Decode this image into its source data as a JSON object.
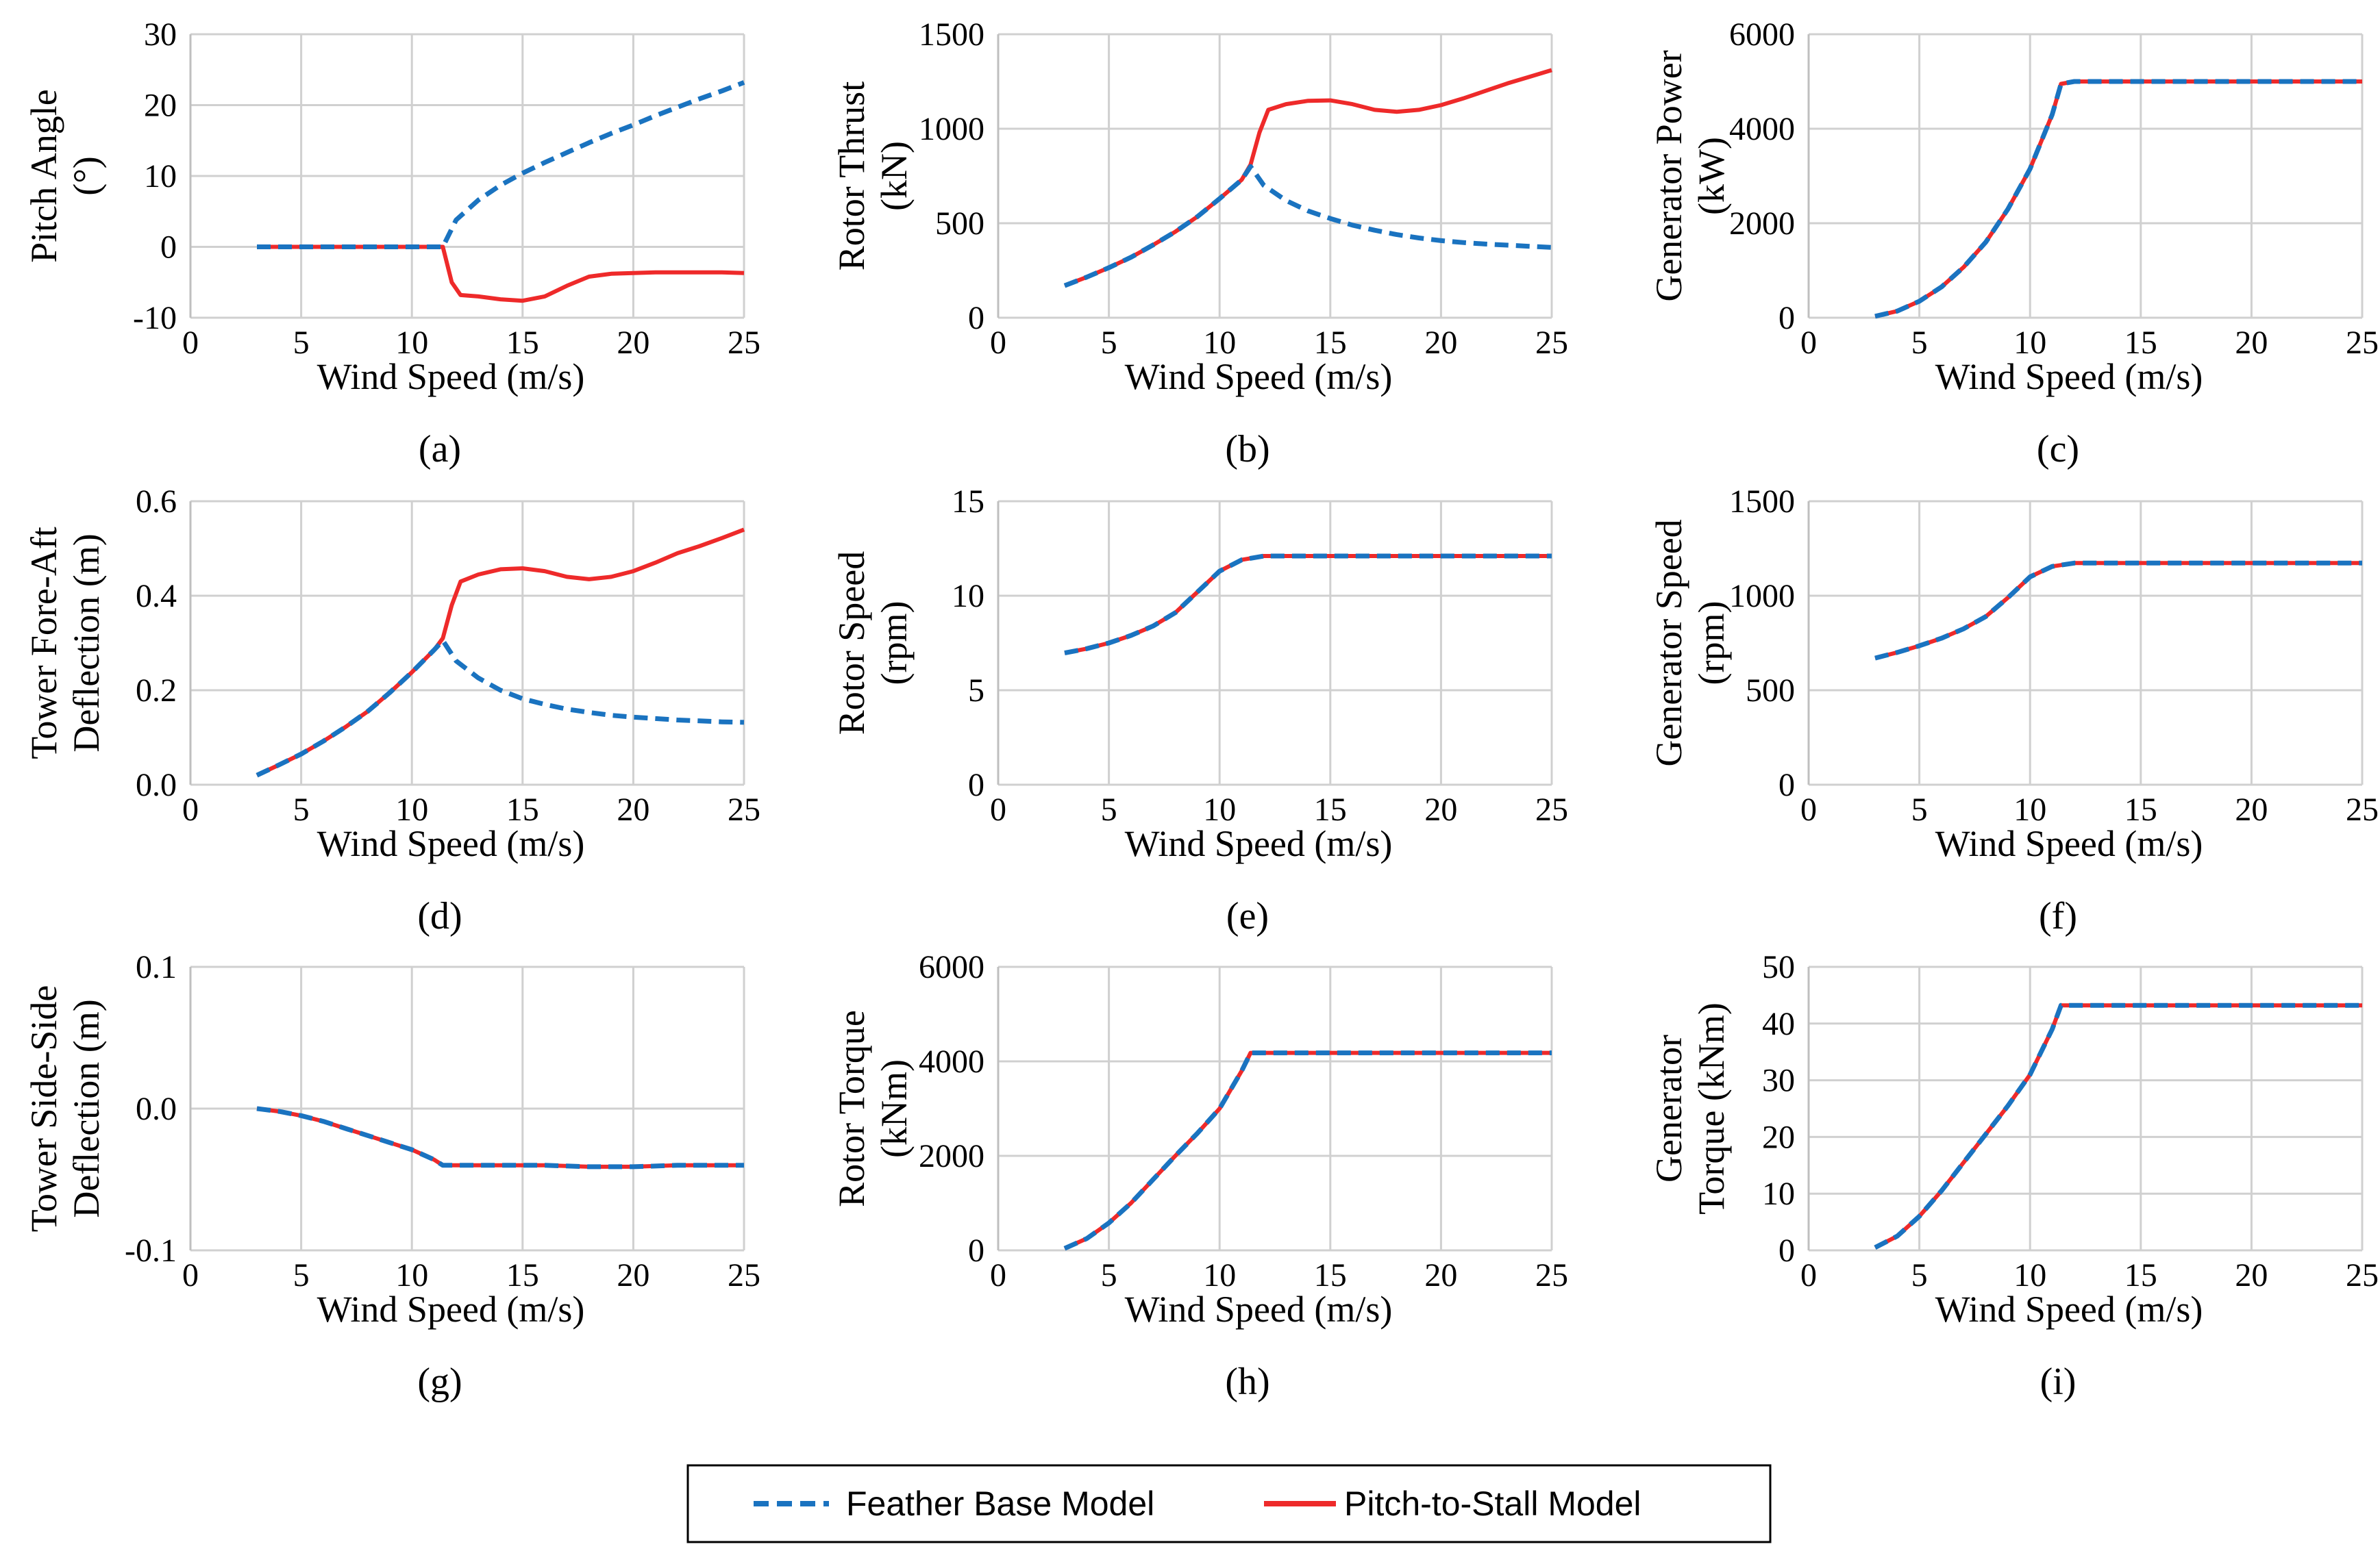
{
  "colors": {
    "feather": "#1a73c0",
    "stall": "#ee2a2a",
    "grid": "#d0d0d0"
  },
  "legend": {
    "entries": [
      "Feather Base Model",
      "Pitch-to-Stall Model"
    ]
  },
  "chart_data": [
    {
      "type": "line",
      "caption": "(a)",
      "xlabel": "Wind Speed (m/s)",
      "ylabel": [
        "Pitch Angle",
        "(°)"
      ],
      "xlim": [
        0,
        25
      ],
      "ylim": [
        -10,
        30
      ],
      "xticks": [
        0,
        5,
        10,
        15,
        20,
        25
      ],
      "yticks": [
        -10,
        0,
        10,
        20,
        30
      ],
      "yticklabels": [
        "-10",
        "0",
        "10",
        "20",
        "30"
      ],
      "grid": true,
      "series": [
        {
          "name": "Feather Base Model",
          "x": [
            3,
            5,
            7,
            9,
            11,
            11.4,
            12,
            13,
            14,
            15,
            16,
            17,
            18,
            19,
            20,
            21,
            22,
            23,
            24,
            25
          ],
          "y": [
            0,
            0,
            0,
            0,
            0,
            0,
            3.8,
            6.6,
            8.7,
            10.4,
            11.9,
            13.3,
            14.7,
            16,
            17.2,
            18.5,
            19.7,
            20.9,
            22,
            23.2
          ]
        },
        {
          "name": "Pitch-to-Stall Model",
          "x": [
            3,
            5,
            7,
            9,
            11,
            11.4,
            11.8,
            12.2,
            13,
            14,
            15,
            16,
            17,
            18,
            19,
            20,
            21,
            22,
            23,
            24,
            25
          ],
          "y": [
            0,
            0,
            0,
            0,
            0,
            0,
            -5,
            -6.8,
            -7,
            -7.4,
            -7.6,
            -7,
            -5.5,
            -4.2,
            -3.8,
            -3.7,
            -3.6,
            -3.6,
            -3.6,
            -3.6,
            -3.7
          ]
        }
      ]
    },
    {
      "type": "line",
      "caption": "(b)",
      "xlabel": "Wind Speed (m/s)",
      "ylabel": [
        "Rotor Thrust",
        "(kN)"
      ],
      "xlim": [
        0,
        25
      ],
      "ylim": [
        0,
        1500
      ],
      "xticks": [
        0,
        5,
        10,
        15,
        20,
        25
      ],
      "yticks": [
        0,
        500,
        1000,
        1500
      ],
      "yticklabels": [
        "0",
        "500",
        "1000",
        "1500"
      ],
      "grid": true,
      "series": [
        {
          "name": "Feather Base Model",
          "x": [
            3,
            4,
            5,
            6,
            7,
            8,
            9,
            10,
            11,
            11.4,
            12,
            13,
            14,
            15,
            16,
            17,
            18,
            19,
            20,
            21,
            22,
            23,
            24,
            25
          ],
          "y": [
            170,
            215,
            265,
            320,
            385,
            455,
            535,
            630,
            730,
            800,
            700,
            620,
            565,
            525,
            490,
            463,
            440,
            422,
            408,
            398,
            390,
            384,
            378,
            372
          ]
        },
        {
          "name": "Pitch-to-Stall Model",
          "x": [
            3,
            4,
            5,
            6,
            7,
            8,
            9,
            10,
            11,
            11.4,
            11.8,
            12.2,
            13,
            14,
            15,
            16,
            17,
            18,
            19,
            20,
            21,
            22,
            23,
            24,
            25
          ],
          "y": [
            170,
            215,
            265,
            320,
            385,
            455,
            535,
            630,
            730,
            810,
            980,
            1100,
            1130,
            1148,
            1150,
            1130,
            1100,
            1090,
            1100,
            1125,
            1160,
            1200,
            1240,
            1275,
            1310
          ]
        }
      ]
    },
    {
      "type": "line",
      "caption": "(c)",
      "xlabel": "Wind Speed (m/s)",
      "ylabel": [
        "Generator Power",
        "(kW)"
      ],
      "xlim": [
        0,
        25
      ],
      "ylim": [
        0,
        6000
      ],
      "xticks": [
        0,
        5,
        10,
        15,
        20,
        25
      ],
      "yticks": [
        0,
        2000,
        4000,
        6000
      ],
      "yticklabels": [
        "0",
        "2000",
        "4000",
        "6000"
      ],
      "grid": true,
      "series": [
        {
          "name": "Feather Base Model",
          "x": [
            3,
            4,
            5,
            6,
            7,
            8,
            9,
            10,
            11,
            11.4,
            12,
            15,
            20,
            25
          ],
          "y": [
            30,
            140,
            350,
            650,
            1070,
            1600,
            2300,
            3150,
            4300,
            4950,
            5000,
            5000,
            5000,
            5000
          ]
        },
        {
          "name": "Pitch-to-Stall Model",
          "x": [
            3,
            4,
            5,
            6,
            7,
            8,
            9,
            10,
            11,
            11.4,
            12,
            15,
            20,
            25
          ],
          "y": [
            30,
            140,
            350,
            650,
            1070,
            1600,
            2300,
            3150,
            4300,
            4950,
            5000,
            5000,
            5000,
            5000
          ]
        }
      ]
    },
    {
      "type": "line",
      "caption": "(d)",
      "xlabel": "Wind Speed (m/s)",
      "ylabel": [
        "Tower Fore-Aft",
        "Deflection (m)"
      ],
      "xlim": [
        0,
        25
      ],
      "ylim": [
        0,
        0.6
      ],
      "xticks": [
        0,
        5,
        10,
        15,
        20,
        25
      ],
      "yticks": [
        0,
        0.2,
        0.4,
        0.6
      ],
      "yticklabels": [
        "0.0",
        "0.2",
        "0.4",
        "0.6"
      ],
      "grid": true,
      "series": [
        {
          "name": "Feather Base Model",
          "x": [
            3,
            4,
            5,
            6,
            7,
            8,
            9,
            10,
            11,
            11.4,
            12,
            13,
            14,
            15,
            16,
            17,
            18,
            19,
            20,
            21,
            22,
            23,
            24,
            25
          ],
          "y": [
            0.02,
            0.042,
            0.065,
            0.092,
            0.122,
            0.155,
            0.195,
            0.238,
            0.285,
            0.305,
            0.262,
            0.226,
            0.2,
            0.182,
            0.17,
            0.16,
            0.153,
            0.147,
            0.143,
            0.14,
            0.137,
            0.135,
            0.133,
            0.132
          ]
        },
        {
          "name": "Pitch-to-Stall Model",
          "x": [
            3,
            4,
            5,
            6,
            7,
            8,
            9,
            10,
            11,
            11.4,
            11.8,
            12.2,
            13,
            14,
            15,
            16,
            17,
            18,
            19,
            20,
            21,
            22,
            23,
            24,
            25
          ],
          "y": [
            0.02,
            0.042,
            0.065,
            0.092,
            0.122,
            0.155,
            0.195,
            0.238,
            0.285,
            0.31,
            0.38,
            0.43,
            0.445,
            0.456,
            0.458,
            0.452,
            0.44,
            0.435,
            0.44,
            0.452,
            0.47,
            0.49,
            0.505,
            0.522,
            0.54
          ]
        }
      ]
    },
    {
      "type": "line",
      "caption": "(e)",
      "xlabel": "Wind Speed (m/s)",
      "ylabel": [
        "Rotor Speed",
        "(rpm)"
      ],
      "xlim": [
        0,
        25
      ],
      "ylim": [
        0,
        15
      ],
      "xticks": [
        0,
        5,
        10,
        15,
        20,
        25
      ],
      "yticks": [
        0,
        5,
        10,
        15
      ],
      "yticklabels": [
        "0",
        "5",
        "10",
        "15"
      ],
      "grid": true,
      "series": [
        {
          "name": "Feather Base Model",
          "x": [
            3,
            4,
            5,
            6,
            7,
            8,
            9,
            10,
            11,
            12,
            15,
            20,
            25
          ],
          "y": [
            6.97,
            7.2,
            7.5,
            7.9,
            8.4,
            9.1,
            10.2,
            11.3,
            11.9,
            12.1,
            12.1,
            12.1,
            12.1
          ]
        },
        {
          "name": "Pitch-to-Stall Model",
          "x": [
            3,
            4,
            5,
            6,
            7,
            8,
            9,
            10,
            11,
            12,
            15,
            20,
            25
          ],
          "y": [
            6.97,
            7.2,
            7.5,
            7.9,
            8.4,
            9.1,
            10.2,
            11.3,
            11.9,
            12.1,
            12.1,
            12.1,
            12.1
          ]
        }
      ]
    },
    {
      "type": "line",
      "caption": "(f)",
      "xlabel": "Wind Speed (m/s)",
      "ylabel": [
        "Generator Speed",
        "(rpm)"
      ],
      "xlim": [
        0,
        25
      ],
      "ylim": [
        0,
        1500
      ],
      "xticks": [
        0,
        5,
        10,
        15,
        20,
        25
      ],
      "yticks": [
        0,
        500,
        1000,
        1500
      ],
      "yticklabels": [
        "0",
        "500",
        "1000",
        "1500"
      ],
      "grid": true,
      "series": [
        {
          "name": "Feather Base Model",
          "x": [
            3,
            4,
            5,
            6,
            7,
            8,
            9,
            10,
            11,
            12,
            15,
            20,
            25
          ],
          "y": [
            670,
            700,
            735,
            775,
            825,
            890,
            990,
            1100,
            1155,
            1173,
            1173,
            1173,
            1173
          ]
        },
        {
          "name": "Pitch-to-Stall Model",
          "x": [
            3,
            4,
            5,
            6,
            7,
            8,
            9,
            10,
            11,
            12,
            15,
            20,
            25
          ],
          "y": [
            670,
            700,
            735,
            775,
            825,
            890,
            990,
            1100,
            1155,
            1173,
            1173,
            1173,
            1173
          ]
        }
      ]
    },
    {
      "type": "line",
      "caption": "(g)",
      "xlabel": "Wind Speed (m/s)",
      "ylabel": [
        "Tower Side-Side",
        "Deflection (m)"
      ],
      "xlim": [
        0,
        25
      ],
      "ylim": [
        -0.1,
        0.1
      ],
      "xticks": [
        0,
        5,
        10,
        15,
        20,
        25
      ],
      "yticks": [
        -0.1,
        0,
        0.1
      ],
      "yticklabels": [
        "-0.1",
        "0.0",
        "0.1"
      ],
      "grid": true,
      "series": [
        {
          "name": "Feather Base Model",
          "x": [
            3,
            4,
            5,
            6,
            7,
            8,
            9,
            10,
            11,
            11.4,
            12,
            14,
            16,
            18,
            20,
            22,
            25
          ],
          "y": [
            0,
            -0.002,
            -0.005,
            -0.009,
            -0.014,
            -0.019,
            -0.024,
            -0.029,
            -0.036,
            -0.04,
            -0.04,
            -0.04,
            -0.04,
            -0.041,
            -0.041,
            -0.04,
            -0.04
          ]
        },
        {
          "name": "Pitch-to-Stall Model",
          "x": [
            3,
            4,
            5,
            6,
            7,
            8,
            9,
            10,
            11,
            11.4,
            12,
            14,
            16,
            18,
            20,
            22,
            25
          ],
          "y": [
            0,
            -0.002,
            -0.005,
            -0.009,
            -0.014,
            -0.019,
            -0.024,
            -0.029,
            -0.036,
            -0.04,
            -0.04,
            -0.04,
            -0.04,
            -0.041,
            -0.041,
            -0.04,
            -0.04
          ]
        }
      ]
    },
    {
      "type": "line",
      "caption": "(h)",
      "xlabel": "Wind Speed (m/s)",
      "ylabel": [
        "Rotor Torque",
        "(kNm)"
      ],
      "xlim": [
        0,
        25
      ],
      "ylim": [
        0,
        6000
      ],
      "xticks": [
        0,
        5,
        10,
        15,
        20,
        25
      ],
      "yticks": [
        0,
        2000,
        4000,
        6000
      ],
      "yticklabels": [
        "0",
        "2000",
        "4000",
        "6000"
      ],
      "grid": true,
      "series": [
        {
          "name": "Feather Base Model",
          "x": [
            3,
            4,
            5,
            6,
            7,
            8,
            9,
            10,
            11,
            11.4,
            12,
            15,
            20,
            25
          ],
          "y": [
            40,
            250,
            580,
            1000,
            1500,
            2000,
            2480,
            3000,
            3800,
            4180,
            4180,
            4180,
            4180,
            4180
          ]
        },
        {
          "name": "Pitch-to-Stall Model",
          "x": [
            3,
            4,
            5,
            6,
            7,
            8,
            9,
            10,
            11,
            11.4,
            12,
            15,
            20,
            25
          ],
          "y": [
            40,
            250,
            580,
            1000,
            1500,
            2000,
            2480,
            3000,
            3800,
            4180,
            4180,
            4180,
            4180,
            4180
          ]
        }
      ]
    },
    {
      "type": "line",
      "caption": "(i)",
      "xlabel": "Wind Speed (m/s)",
      "ylabel": [
        "Generator",
        "Torque (kNm)"
      ],
      "xlim": [
        0,
        25
      ],
      "ylim": [
        0,
        50
      ],
      "xticks": [
        0,
        5,
        10,
        15,
        20,
        25
      ],
      "yticks": [
        0,
        10,
        20,
        30,
        40,
        50
      ],
      "yticklabels": [
        "0",
        "10",
        "20",
        "30",
        "40",
        "50"
      ],
      "grid": true,
      "series": [
        {
          "name": "Feather Base Model",
          "x": [
            3,
            4,
            5,
            6,
            7,
            8,
            9,
            10,
            11,
            11.4,
            12,
            15,
            20,
            25
          ],
          "y": [
            0.5,
            2.5,
            6,
            10.5,
            15.5,
            20.5,
            25.5,
            31,
            39,
            43.2,
            43.2,
            43.2,
            43.2,
            43.2
          ]
        },
        {
          "name": "Pitch-to-Stall Model",
          "x": [
            3,
            4,
            5,
            6,
            7,
            8,
            9,
            10,
            11,
            11.4,
            12,
            15,
            20,
            25
          ],
          "y": [
            0.5,
            2.5,
            6,
            10.5,
            15.5,
            20.5,
            25.5,
            31,
            39,
            43.2,
            43.2,
            43.2,
            43.2,
            43.2
          ]
        }
      ]
    }
  ]
}
